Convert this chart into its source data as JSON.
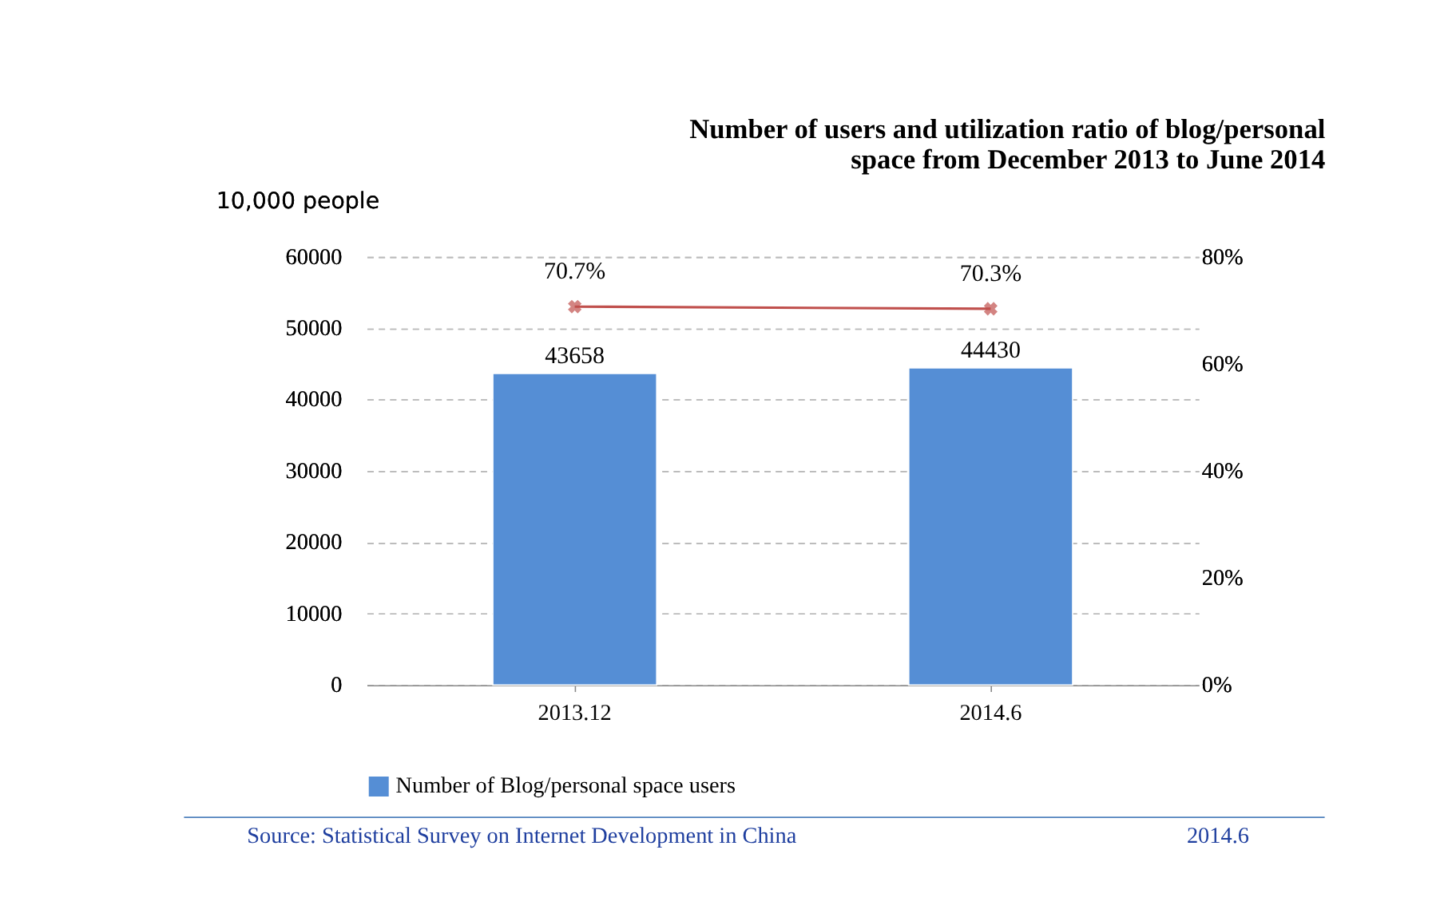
{
  "chart_data": {
    "type": "bar",
    "title": "Number of users and utilization ratio of blog/personal\nspace from December 2013 to June 2014",
    "ylabel": "10,000 people",
    "categories": [
      "2013.12",
      "2014.6"
    ],
    "series": [
      {
        "name": "Number of Blog/personal space users",
        "color": "#558ed5",
        "values": [
          43658,
          44430
        ],
        "value_labels": [
          "43658",
          "44430"
        ]
      },
      {
        "type": "line",
        "axis": "y2",
        "color": "#c0504d",
        "values": [
          70.7,
          70.3
        ],
        "value_labels": [
          "70.7%",
          "70.3%"
        ],
        "marker": "cross"
      }
    ],
    "ylim": [
      0,
      60000
    ],
    "yticks": [
      0,
      10000,
      20000,
      30000,
      40000,
      50000,
      60000
    ],
    "y2lim": [
      0,
      80
    ],
    "y2ticks": [
      {
        "value": 0,
        "label": "0%"
      },
      {
        "value": 20,
        "label": "20%"
      },
      {
        "value": 40,
        "label": "40%"
      },
      {
        "value": 60,
        "label": "60%"
      },
      {
        "value": 80,
        "label": "80%"
      }
    ],
    "grid": "y",
    "legend": "bottom",
    "annotations": [
      "Source: Statistical Survey on Internet Development in China",
      "2014.6"
    ]
  }
}
